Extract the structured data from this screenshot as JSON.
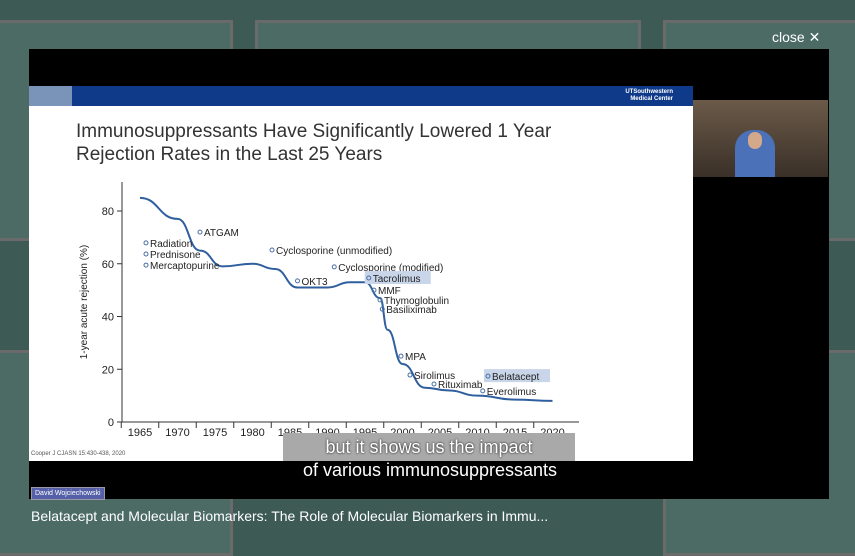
{
  "close_label": "close ✕",
  "slide": {
    "logo_line1": "UTSouthwestern",
    "logo_line2": "Medical Center",
    "title_line1": "Immunosuppressants Have Significantly Lowered 1 Year",
    "title_line2": "Rejection Rates in the Last 25 Years",
    "citation": "Cooper J CJASN 15:430-438, 2020"
  },
  "captions": {
    "line1": "but it shows us the impact",
    "line2": "of various immunosuppressants"
  },
  "speaker_name": "David Wojciechowski",
  "video_title": "Belatacept and Molecular Biomarkers: The Role of Molecular Biomarkers in Immu...",
  "chart_data": {
    "type": "line",
    "ylabel": "1-year acute rejection (%)",
    "ylim": [
      0,
      85
    ],
    "yticks": [
      0,
      20,
      40,
      60,
      80
    ],
    "xticks": [
      "1965",
      "1970",
      "1975",
      "1980",
      "1985",
      "1990",
      "1995",
      "2000",
      "2005",
      "2010",
      "2015",
      "2020"
    ],
    "curve": [
      [
        1965,
        85
      ],
      [
        1970,
        77
      ],
      [
        1973,
        65
      ],
      [
        1976,
        59
      ],
      [
        1980,
        60
      ],
      [
        1983,
        58
      ],
      [
        1986,
        51
      ],
      [
        1990,
        51
      ],
      [
        1993,
        53
      ],
      [
        1995,
        53
      ],
      [
        1997,
        47
      ],
      [
        1998,
        35
      ],
      [
        2000,
        22
      ],
      [
        2003,
        13
      ],
      [
        2006,
        12
      ],
      [
        2010,
        10
      ],
      [
        2015,
        8.5
      ],
      [
        2020,
        8
      ]
    ],
    "annotations": [
      {
        "label": "Radiation",
        "year": 1965.8,
        "value": 67.9
      },
      {
        "label": "Prednisone",
        "year": 1965.8,
        "value": 63.7
      },
      {
        "label": "Mercaptopurine",
        "year": 1965.8,
        "value": 59.5
      },
      {
        "label": "ATGAM",
        "year": 1973,
        "value": 72
      },
      {
        "label": "Cyclosporine (unmodified)",
        "year": 1982.6,
        "value": 65.2
      },
      {
        "label": "OKT3",
        "year": 1986,
        "value": 53.5
      },
      {
        "label": "Cyclosporine (modified)",
        "year": 1990.9,
        "value": 58.8
      },
      {
        "label": "Tacrolimus",
        "year": 1995.5,
        "value": 54.6,
        "highlight": true
      },
      {
        "label": "MMF",
        "year": 1996.2,
        "value": 50
      },
      {
        "label": "Thymoglobulin",
        "year": 1997,
        "value": 46.3
      },
      {
        "label": "Basiliximab",
        "year": 1997.3,
        "value": 42.8
      },
      {
        "label": "MPA",
        "year": 1999.8,
        "value": 25
      },
      {
        "label": "Sirolimus",
        "year": 2001,
        "value": 17.8
      },
      {
        "label": "Rituximab",
        "year": 2004.2,
        "value": 14.4
      },
      {
        "label": "Belatacept",
        "year": 2011.4,
        "value": 17.4,
        "highlight": true
      },
      {
        "label": "Everolimus",
        "year": 2010.7,
        "value": 11.8
      }
    ]
  }
}
